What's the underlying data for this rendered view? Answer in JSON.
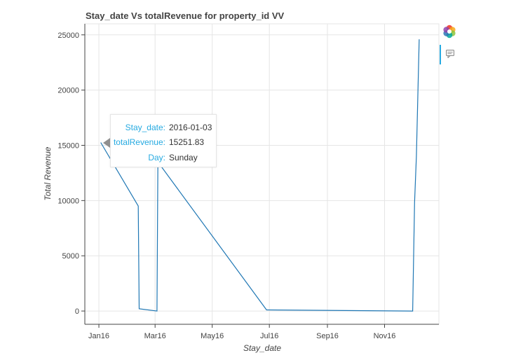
{
  "chart_data": {
    "type": "line",
    "title": "Stay_date Vs totalRevenue for property_id VV",
    "xlabel": "Stay_date",
    "ylabel": "Total Revenue",
    "x_ticks": [
      "Jan16",
      "Mar16",
      "May16",
      "Jul16",
      "Sep16",
      "Nov16"
    ],
    "x_tick_dates": [
      "2016-01-01",
      "2016-03-01",
      "2016-05-01",
      "2016-07-01",
      "2016-09-01",
      "2016-11-01"
    ],
    "y_ticks": [
      0,
      5000,
      10000,
      15000,
      20000,
      25000
    ],
    "xlim": [
      "2015-12-17",
      "2016-12-29"
    ],
    "ylim": [
      -1200,
      26000
    ],
    "grid": true,
    "series": [
      {
        "color": "#1f77b4",
        "points": [
          {
            "date": "2016-01-03",
            "value": 15251.83
          },
          {
            "date": "2016-02-12",
            "value": 9500
          },
          {
            "date": "2016-02-13",
            "value": 200
          },
          {
            "date": "2016-03-03",
            "value": 0
          },
          {
            "date": "2016-03-04",
            "value": 13500
          },
          {
            "date": "2016-06-28",
            "value": 100
          },
          {
            "date": "2016-12-01",
            "value": 0
          },
          {
            "date": "2016-12-03",
            "value": 9800
          },
          {
            "date": "2016-12-05",
            "value": 14000
          },
          {
            "date": "2016-12-08",
            "value": 24600
          }
        ]
      }
    ]
  },
  "tooltip": {
    "rows": [
      {
        "key": "Stay_date:",
        "value": "2016-01-03"
      },
      {
        "key": "totalRevenue:",
        "value": "15251.83"
      },
      {
        "key": "Day:",
        "value": "Sunday"
      }
    ]
  },
  "toolbar": {
    "logo_icon": "bokeh-logo-icon",
    "hover_icon": "hover-tool-icon",
    "accent_color": "#26aae1"
  }
}
